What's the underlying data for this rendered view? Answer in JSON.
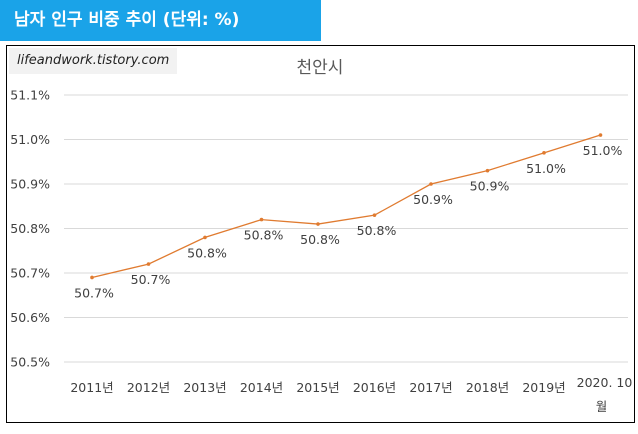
{
  "header": {
    "title": "남자 인구 비중 추이 (단위: %)"
  },
  "watermark": {
    "text": "lifeandwork.tistory.com"
  },
  "colors": {
    "header_bg": "#1aa3e8",
    "series_line": "#e07b30",
    "gridline": "#d9d9d9"
  },
  "chart_data": {
    "type": "line",
    "title": "천안시",
    "categories": [
      "2011년",
      "2012년",
      "2013년",
      "2014년",
      "2015년",
      "2016년",
      "2017년",
      "2018년",
      "2019년",
      "2020. 10 월"
    ],
    "series": [
      {
        "name": "남자 인구 비중",
        "values": [
          50.69,
          50.72,
          50.78,
          50.82,
          50.81,
          50.83,
          50.9,
          50.93,
          50.97,
          51.01
        ],
        "labels": [
          "50.7%",
          "50.7%",
          "50.8%",
          "50.8%",
          "50.8%",
          "50.8%",
          "50.9%",
          "50.9%",
          "51.0%",
          "51.0%"
        ]
      }
    ],
    "ylim": [
      50.5,
      51.1
    ],
    "yticks": [
      50.5,
      50.6,
      50.7,
      50.8,
      50.9,
      51.0,
      51.1
    ],
    "ytick_labels": [
      "50.5%",
      "50.6%",
      "50.7%",
      "50.8%",
      "50.9%",
      "51.0%",
      "51.1%"
    ],
    "xlabel": "",
    "ylabel": "",
    "grid": true,
    "legend": "none"
  }
}
